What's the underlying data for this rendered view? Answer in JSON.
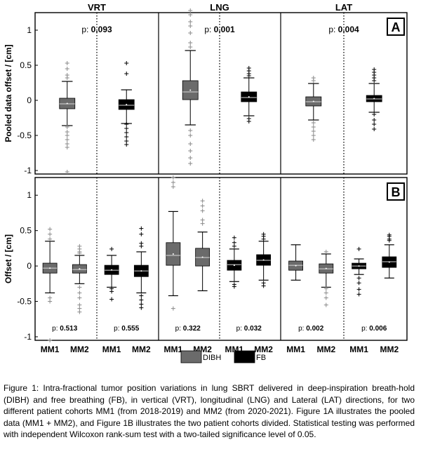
{
  "figure": {
    "col_headers": [
      "VRT",
      "LNG",
      "LAT"
    ],
    "panel_a_letter": "A",
    "panel_b_letter": "B",
    "ylabel_a": "Pooled data offset / [cm]",
    "ylabel_b": "Offset / [cm]",
    "legend": [
      {
        "label": "DIBH",
        "color": "#6b6b6b"
      },
      {
        "label": "FB",
        "color": "#000000"
      }
    ]
  },
  "chart_data": [
    {
      "type": "boxplot",
      "panel": "A",
      "ylim": [
        -1.05,
        1.25
      ],
      "yticks": [
        "1",
        "0.5",
        "0",
        "-0.5",
        "-1"
      ],
      "grid": false,
      "groups": [
        {
          "column": "VRT",
          "p_label": "p:",
          "p_value": "0.093",
          "boxes": [
            {
              "series": "DIBH",
              "q1": -0.12,
              "median": -0.05,
              "q3": 0.03,
              "whisker_low": -0.36,
              "whisker_high": 0.27,
              "outliers": [
                0.53,
                0.45,
                0.36,
                0.32,
                -0.38,
                -0.45,
                -0.5,
                -0.56,
                -0.62,
                -0.67,
                -1.02
              ]
            },
            {
              "series": "FB",
              "q1": -0.13,
              "median": -0.07,
              "q3": 0.01,
              "whisker_low": -0.33,
              "whisker_high": 0.15,
              "outliers": [
                0.53,
                0.38,
                -0.34,
                -0.4,
                -0.46,
                -0.52,
                -0.58,
                -0.63
              ]
            }
          ]
        },
        {
          "column": "LNG",
          "p_label": "p:",
          "p_value": "0.001",
          "boxes": [
            {
              "series": "DIBH",
              "q1": 0.01,
              "median": 0.12,
              "q3": 0.28,
              "whisker_low": -0.35,
              "whisker_high": 0.71,
              "outliers": [
                1.28,
                1.22,
                1.12,
                1.06,
                0.96,
                0.82,
                0.76,
                -0.43,
                -0.5,
                -0.62,
                -0.72,
                -0.82,
                -0.9
              ]
            },
            {
              "series": "FB",
              "q1": -0.02,
              "median": 0.04,
              "q3": 0.12,
              "whisker_low": -0.22,
              "whisker_high": 0.32,
              "outliers": [
                0.46,
                0.42,
                0.38,
                0.35,
                -0.26,
                -0.3
              ]
            }
          ]
        },
        {
          "column": "LAT",
          "p_label": "p:",
          "p_value": "0.004",
          "boxes": [
            {
              "series": "DIBH",
              "q1": -0.08,
              "median": -0.02,
              "q3": 0.05,
              "whisker_low": -0.28,
              "whisker_high": 0.24,
              "outliers": [
                0.32,
                0.28,
                -0.32,
                -0.38,
                -0.44,
                -0.5,
                -0.56
              ]
            },
            {
              "series": "FB",
              "q1": -0.02,
              "median": 0.02,
              "q3": 0.07,
              "whisker_low": -0.17,
              "whisker_high": 0.24,
              "outliers": [
                0.44,
                0.4,
                0.36,
                0.32,
                0.28,
                -0.2,
                -0.28,
                -0.34,
                -0.41
              ]
            }
          ]
        }
      ]
    },
    {
      "type": "boxplot",
      "panel": "B",
      "ylim": [
        -1.05,
        1.25
      ],
      "yticks": [
        "1",
        "0.5",
        "0",
        "-0.5",
        "-1"
      ],
      "xticks": [
        "MM1",
        "MM2",
        "MM1",
        "MM2",
        "MM1",
        "MM2",
        "MM1",
        "MM2",
        "MM1",
        "MM2",
        "MM1",
        "MM2"
      ],
      "grid": false,
      "groups": [
        {
          "column": "VRT",
          "subgroups": [
            {
              "p_label": "p:",
              "p_value": "0.513",
              "boxes": [
                {
                  "series": "DIBH",
                  "cohort": "MM1",
                  "q1": -0.1,
                  "median": -0.03,
                  "q3": 0.04,
                  "whisker_low": -0.38,
                  "whisker_high": 0.35,
                  "outliers": [
                    0.52,
                    0.45,
                    0.38,
                    -0.45,
                    -0.5,
                    -1.05
                  ]
                },
                {
                  "series": "DIBH",
                  "cohort": "MM2",
                  "q1": -0.1,
                  "median": -0.05,
                  "q3": 0.02,
                  "whisker_low": -0.25,
                  "whisker_high": 0.15,
                  "outliers": [
                    0.28,
                    0.24,
                    0.2,
                    0.18,
                    -0.3,
                    -0.38,
                    -0.45,
                    -0.55,
                    -0.6,
                    -0.65
                  ]
                }
              ]
            },
            {
              "p_label": "p:",
              "p_value": "0.555",
              "boxes": [
                {
                  "series": "FB",
                  "cohort": "MM1",
                  "q1": -0.12,
                  "median": -0.06,
                  "q3": 0.01,
                  "whisker_low": -0.3,
                  "whisker_high": 0.15,
                  "outliers": [
                    0.24,
                    -0.32,
                    -0.36,
                    -0.47
                  ]
                },
                {
                  "series": "FB",
                  "cohort": "MM2",
                  "q1": -0.15,
                  "median": -0.07,
                  "q3": 0.01,
                  "whisker_low": -0.38,
                  "whisker_high": 0.2,
                  "outliers": [
                    0.53,
                    0.45,
                    0.32,
                    0.28,
                    -0.42,
                    -0.48,
                    -0.54,
                    -0.59
                  ]
                }
              ]
            }
          ]
        },
        {
          "column": "LNG",
          "subgroups": [
            {
              "p_label": "p:",
              "p_value": "0.322",
              "boxes": [
                {
                  "series": "DIBH",
                  "cohort": "MM1",
                  "q1": 0.01,
                  "median": 0.15,
                  "q3": 0.33,
                  "whisker_low": -0.42,
                  "whisker_high": 0.77,
                  "outliers": [
                    1.25,
                    1.18,
                    1.12,
                    -0.6
                  ]
                },
                {
                  "series": "DIBH",
                  "cohort": "MM2",
                  "q1": 0.0,
                  "median": 0.12,
                  "q3": 0.25,
                  "whisker_low": -0.35,
                  "whisker_high": 0.48,
                  "outliers": [
                    0.92,
                    0.85,
                    0.78,
                    0.65,
                    0.6
                  ]
                }
              ]
            },
            {
              "p_label": "p:",
              "p_value": "0.032",
              "boxes": [
                {
                  "series": "FB",
                  "cohort": "MM1",
                  "q1": -0.06,
                  "median": 0.02,
                  "q3": 0.08,
                  "whisker_low": -0.22,
                  "whisker_high": 0.24,
                  "outliers": [
                    0.4,
                    0.33,
                    0.28,
                    -0.26,
                    -0.29
                  ]
                },
                {
                  "series": "FB",
                  "cohort": "MM2",
                  "q1": 0.01,
                  "median": 0.08,
                  "q3": 0.16,
                  "whisker_low": -0.2,
                  "whisker_high": 0.35,
                  "outliers": [
                    0.45,
                    0.42,
                    0.38,
                    -0.24,
                    -0.28
                  ]
                }
              ]
            }
          ]
        },
        {
          "column": "LAT",
          "subgroups": [
            {
              "p_label": "p:",
              "p_value": "0.002",
              "boxes": [
                {
                  "series": "DIBH",
                  "cohort": "MM1",
                  "q1": -0.06,
                  "median": 0.01,
                  "q3": 0.07,
                  "whisker_low": -0.2,
                  "whisker_high": 0.3,
                  "outliers": []
                },
                {
                  "series": "DIBH",
                  "cohort": "MM2",
                  "q1": -0.1,
                  "median": -0.04,
                  "q3": 0.03,
                  "whisker_low": -0.3,
                  "whisker_high": 0.17,
                  "outliers": [
                    0.2,
                    -0.32,
                    -0.38,
                    -0.45,
                    -0.55
                  ]
                }
              ]
            },
            {
              "p_label": "p:",
              "p_value": "0.006",
              "boxes": [
                {
                  "series": "FB",
                  "cohort": "MM1",
                  "q1": -0.04,
                  "median": 0.0,
                  "q3": 0.04,
                  "whisker_low": -0.12,
                  "whisker_high": 0.1,
                  "outliers": [
                    0.24,
                    -0.17,
                    -0.24,
                    -0.33,
                    -0.4
                  ]
                },
                {
                  "series": "FB",
                  "cohort": "MM2",
                  "q1": -0.02,
                  "median": 0.06,
                  "q3": 0.13,
                  "whisker_low": -0.17,
                  "whisker_high": 0.3,
                  "outliers": [
                    0.44,
                    0.42,
                    0.38,
                    0.36
                  ]
                }
              ]
            }
          ]
        }
      ]
    }
  ],
  "caption": "Figure 1: Intra-fractional tumor position variations in lung SBRT delivered in deep-inspiration breath-hold (DIBH) and free breathing (FB), in vertical (VRT), longitudinal (LNG) and Lateral (LAT) directions, for two different patient cohorts MM1 (from 2018-2019) and MM2 (from 2020-2021). Figure 1A illustrates the pooled data (MM1 + MM2), and Figure 1B illustrates the two patient cohorts divided. Statistical testing was performed with independent Wilcoxon rank-sum test with a two-tailed significance level of 0.05."
}
